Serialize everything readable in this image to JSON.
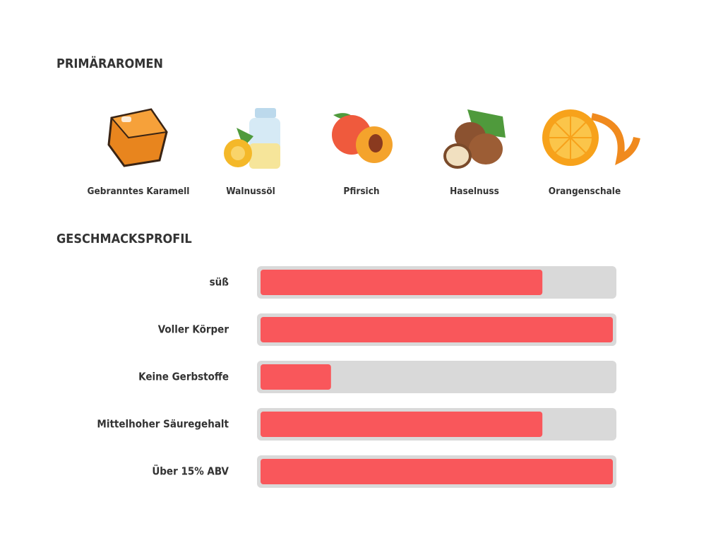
{
  "aromas": {
    "title": "PRIMÄRAROMEN",
    "items": [
      "Gebranntes Karamell",
      "Walnussöl",
      "Pfirsich",
      "Haselnuss",
      "Orangenschale"
    ]
  },
  "profile": {
    "title": "GESCHMACKSPROFIL",
    "xlim": [
      0,
      100
    ],
    "color": "#f9575b",
    "rows": [
      {
        "label": "süß",
        "value": 80
      },
      {
        "label": "Voller Körper",
        "value": 100
      },
      {
        "label": "Keine Gerbstoffe",
        "value": 20
      },
      {
        "label": "Mittelhoher Säuregehalt",
        "value": 80
      },
      {
        "label": "Über 15% ABV",
        "value": 100
      }
    ]
  }
}
